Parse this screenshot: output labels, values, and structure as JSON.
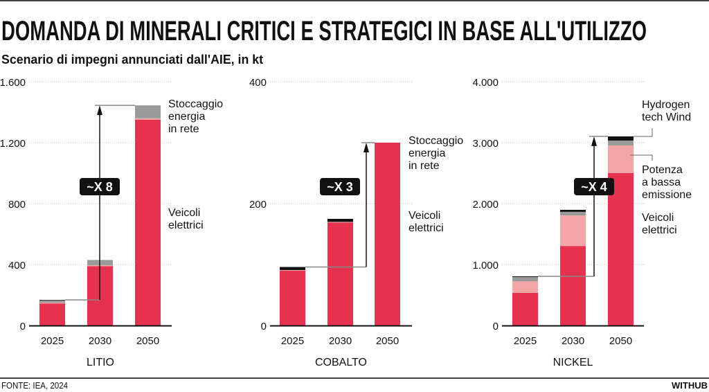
{
  "header": {
    "title": "DOMANDA DI MINERALI CRITICI E STRATEGICI IN BASE ALL'UTILIZZO",
    "subtitle": "Scenario di impegni annunciati dall'AIE, in kt"
  },
  "footer": {
    "source": "FONTE: IEA, 2024",
    "brand": "WITHUB"
  },
  "colors": {
    "veicoli": "#e5334f",
    "potenza": "#f3a6a6",
    "stoccaggio": "#9a9a9a",
    "hydrogen": "#111111"
  },
  "chart_data": [
    {
      "type": "bar",
      "stacked": true,
      "title": "LITIO",
      "categories": [
        "2025",
        "2030",
        "2050"
      ],
      "ylim": [
        0,
        1600
      ],
      "yticks": [
        0,
        400,
        800,
        1200,
        1600
      ],
      "ytick_labels": [
        "0",
        "400",
        "800",
        "1.200",
        "1.600"
      ],
      "grid": true,
      "series": [
        {
          "key": "veicoli",
          "values": [
            145,
            390,
            1350
          ]
        },
        {
          "key": "potenza",
          "values": [
            5,
            5,
            10
          ]
        },
        {
          "key": "stoccaggio",
          "values": [
            15,
            35,
            85
          ]
        },
        {
          "key": "hydrogen",
          "values": [
            3,
            0,
            0
          ]
        }
      ],
      "multiplier": "~X 8",
      "labels": [
        {
          "text": "Stoccaggio\nenergia\nin rete"
        },
        {
          "text": "Veicoli\nelettrici"
        }
      ]
    },
    {
      "type": "bar",
      "stacked": true,
      "title": "COBALTO",
      "categories": [
        "2025",
        "2030",
        "2050"
      ],
      "ylim": [
        0,
        400
      ],
      "yticks": [
        0,
        200,
        400
      ],
      "ytick_labels": [
        "0",
        "200",
        "400"
      ],
      "grid": true,
      "series": [
        {
          "key": "veicoli",
          "values": [
            90,
            169,
            300
          ]
        },
        {
          "key": "potenza",
          "values": [
            1,
            1,
            0
          ]
        },
        {
          "key": "hydrogen",
          "values": [
            5,
            5,
            0
          ]
        }
      ],
      "multiplier": "~X 3",
      "labels": [
        {
          "text": "Stoccaggio\nenergia\nin rete"
        },
        {
          "text": "Veicoli\nelettrici"
        }
      ]
    },
    {
      "type": "bar",
      "stacked": true,
      "title": "NICKEL",
      "categories": [
        "2025",
        "2030",
        "2050"
      ],
      "ylim": [
        0,
        4000
      ],
      "yticks": [
        0,
        1000,
        2000,
        3000,
        4000
      ],
      "ytick_labels": [
        "0",
        "1.000",
        "2.000",
        "3.000",
        "4.000"
      ],
      "grid": true,
      "series": [
        {
          "key": "veicoli",
          "values": [
            535,
            1305,
            2500
          ]
        },
        {
          "key": "potenza",
          "values": [
            190,
            500,
            455
          ]
        },
        {
          "key": "stoccaggio",
          "values": [
            70,
            60,
            80
          ]
        },
        {
          "key": "hydrogen",
          "values": [
            12,
            33,
            68
          ]
        }
      ],
      "multiplier": "~X 4",
      "labels": [
        {
          "text": "Hydrogen\ntech Wind"
        },
        {
          "text": "Potenza\na bassa\nemissione"
        },
        {
          "text": "Veicoli\nelettrici"
        }
      ]
    }
  ]
}
